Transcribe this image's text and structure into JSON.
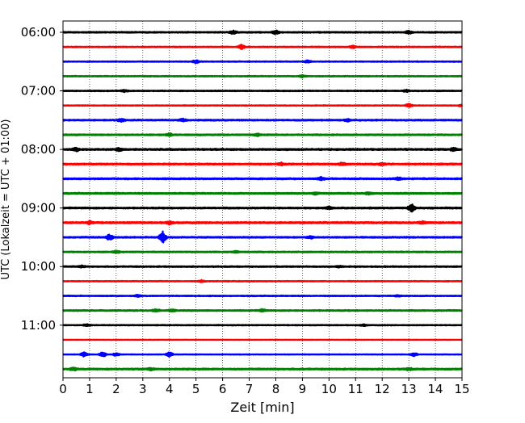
{
  "chart_data": {
    "type": "line",
    "title": "",
    "xlabel": "Zeit  [min]",
    "ylabel": "UTC (Lokalzeit = UTC + 01:00)",
    "xlim": [
      0,
      15
    ],
    "x_ticks": [
      "0",
      "1",
      "2",
      "3",
      "4",
      "5",
      "6",
      "7",
      "8",
      "9",
      "10",
      "11",
      "12",
      "13",
      "14",
      "15"
    ],
    "y_ticks": [
      {
        "label": "06:00",
        "trace": 0
      },
      {
        "label": "07:00",
        "trace": 4
      },
      {
        "label": "08:00",
        "trace": 8
      },
      {
        "label": "09:00",
        "trace": 12
      },
      {
        "label": "10:00",
        "trace": 16
      },
      {
        "label": "11:00",
        "trace": 20
      }
    ],
    "grid": "vertical dotted at each minute",
    "trace_interval_minutes": 15,
    "colors": [
      "#000000",
      "#ff0000",
      "#0000ff",
      "#008000"
    ],
    "traces": [
      {
        "start": "06:00",
        "color": "#000000",
        "amp": 0.7,
        "events": [
          [
            6.4,
            2.0
          ],
          [
            8.0,
            2.5
          ],
          [
            13.0,
            1.8
          ]
        ]
      },
      {
        "start": "06:15",
        "color": "#ff0000",
        "amp": 0.6,
        "events": [
          [
            6.7,
            3.0
          ],
          [
            10.9,
            1.5
          ]
        ]
      },
      {
        "start": "06:30",
        "color": "#0000ff",
        "amp": 0.5,
        "events": [
          [
            5.0,
            2.0
          ],
          [
            9.2,
            1.4
          ]
        ]
      },
      {
        "start": "06:45",
        "color": "#008000",
        "amp": 0.6,
        "events": [
          [
            9.0,
            1.2
          ]
        ]
      },
      {
        "start": "07:00",
        "color": "#000000",
        "amp": 0.6,
        "events": [
          [
            2.3,
            1.2
          ],
          [
            12.9,
            1.4
          ]
        ]
      },
      {
        "start": "07:15",
        "color": "#ff0000",
        "amp": 0.5,
        "events": [
          [
            13.0,
            2.0
          ],
          [
            15.0,
            1.5
          ]
        ]
      },
      {
        "start": "07:30",
        "color": "#0000ff",
        "amp": 0.8,
        "events": [
          [
            2.2,
            2.0
          ],
          [
            4.5,
            1.6
          ],
          [
            10.7,
            1.4
          ]
        ]
      },
      {
        "start": "07:45",
        "color": "#008000",
        "amp": 0.8,
        "events": [
          [
            4.0,
            1.8
          ],
          [
            7.3,
            1.4
          ]
        ]
      },
      {
        "start": "08:00",
        "color": "#000000",
        "amp": 1.0,
        "events": [
          [
            0.5,
            2.0
          ],
          [
            2.1,
            1.8
          ],
          [
            14.7,
            2.0
          ]
        ]
      },
      {
        "start": "08:15",
        "color": "#ff0000",
        "amp": 0.9,
        "events": [
          [
            8.2,
            1.6
          ],
          [
            10.5,
            1.8
          ],
          [
            12.0,
            1.6
          ]
        ]
      },
      {
        "start": "08:30",
        "color": "#0000ff",
        "amp": 0.9,
        "events": [
          [
            9.7,
            1.8
          ],
          [
            12.6,
            1.6
          ]
        ]
      },
      {
        "start": "08:45",
        "color": "#008000",
        "amp": 0.9,
        "events": [
          [
            9.5,
            1.4
          ],
          [
            11.5,
            1.4
          ]
        ]
      },
      {
        "start": "09:00",
        "color": "#000000",
        "amp": 0.9,
        "events": [
          [
            10.0,
            1.6
          ],
          [
            13.1,
            4.5
          ]
        ]
      },
      {
        "start": "09:15",
        "color": "#ff0000",
        "amp": 1.0,
        "events": [
          [
            1.0,
            1.8
          ],
          [
            4.0,
            1.8
          ],
          [
            13.5,
            1.6
          ]
        ]
      },
      {
        "start": "09:30",
        "color": "#0000ff",
        "amp": 0.8,
        "events": [
          [
            1.75,
            3.5
          ],
          [
            3.75,
            7.0
          ],
          [
            9.3,
            1.6
          ]
        ]
      },
      {
        "start": "09:45",
        "color": "#008000",
        "amp": 0.7,
        "events": [
          [
            2.0,
            1.6
          ],
          [
            6.5,
            1.2
          ]
        ]
      },
      {
        "start": "10:00",
        "color": "#000000",
        "amp": 0.7,
        "events": [
          [
            0.7,
            1.2
          ],
          [
            10.4,
            1.0
          ]
        ]
      },
      {
        "start": "10:15",
        "color": "#ff0000",
        "amp": 0.5,
        "events": [
          [
            5.2,
            1.2
          ]
        ]
      },
      {
        "start": "10:30",
        "color": "#0000ff",
        "amp": 0.6,
        "events": [
          [
            2.8,
            1.2
          ],
          [
            12.6,
            1.0
          ]
        ]
      },
      {
        "start": "10:45",
        "color": "#008000",
        "amp": 0.8,
        "events": [
          [
            3.5,
            1.6
          ],
          [
            4.1,
            1.6
          ],
          [
            7.5,
            1.4
          ]
        ]
      },
      {
        "start": "11:00",
        "color": "#000000",
        "amp": 0.5,
        "events": [
          [
            0.9,
            1.4
          ],
          [
            11.3,
            1.0
          ]
        ]
      },
      {
        "start": "11:15",
        "color": "#ff0000",
        "amp": 0.3,
        "events": []
      },
      {
        "start": "11:30",
        "color": "#0000ff",
        "amp": 0.4,
        "events": [
          [
            0.8,
            3.0
          ],
          [
            1.5,
            3.5
          ],
          [
            2.0,
            2.0
          ],
          [
            4.0,
            3.0
          ],
          [
            13.2,
            2.0
          ]
        ]
      },
      {
        "start": "11:45",
        "color": "#008000",
        "amp": 0.9,
        "events": [
          [
            0.4,
            2.0
          ],
          [
            3.3,
            1.4
          ],
          [
            13.0,
            1.4
          ]
        ]
      }
    ]
  }
}
